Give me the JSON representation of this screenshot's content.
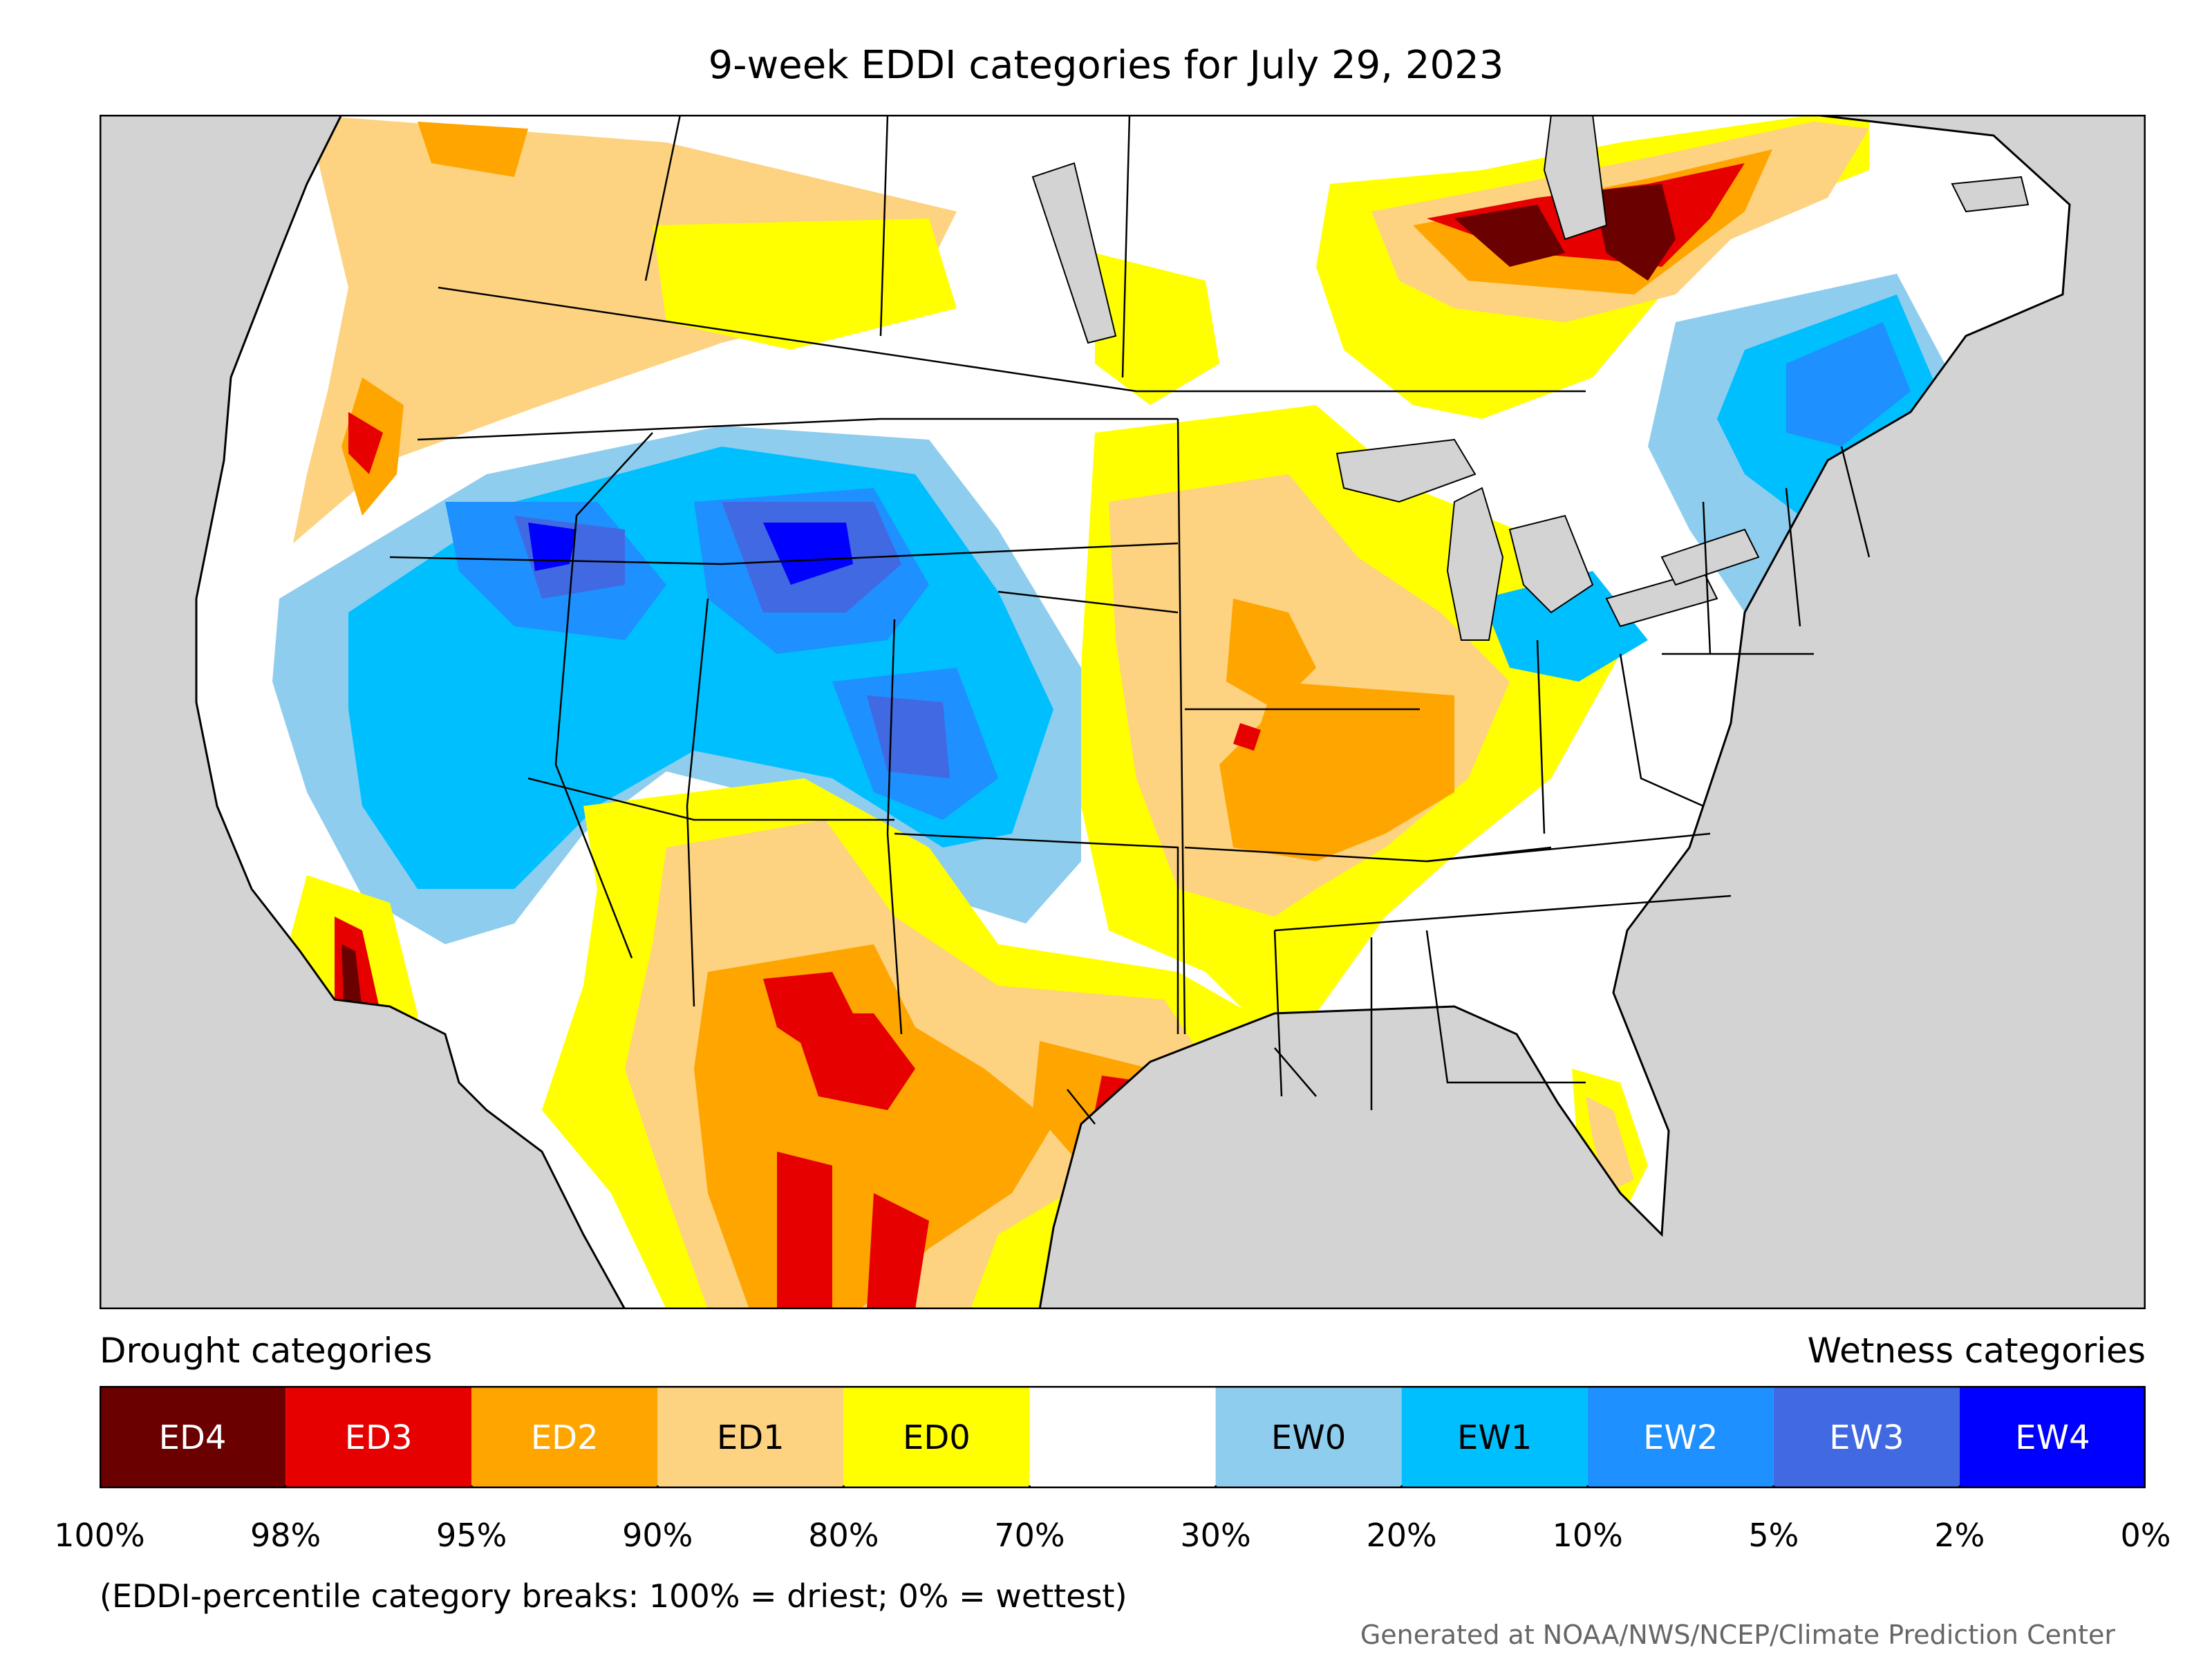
{
  "title": "9-week EDDI categories for July 29, 2023",
  "legend": {
    "drought_label": "Drought categories",
    "wetness_label": "Wetness categories",
    "categories": [
      {
        "label": "ED4",
        "color": "#6b0000",
        "text_color": "#ffffff"
      },
      {
        "label": "ED3",
        "color": "#e60000",
        "text_color": "#ffffff"
      },
      {
        "label": "ED2",
        "color": "#ffa500",
        "text_color": "#ffffff"
      },
      {
        "label": "ED1",
        "color": "#fdd281",
        "text_color": "#000000"
      },
      {
        "label": "ED0",
        "color": "#ffff00",
        "text_color": "#000000"
      },
      {
        "label": "",
        "color": "#ffffff",
        "text_color": "#000000"
      },
      {
        "label": "EW0",
        "color": "#8ecdee",
        "text_color": "#000000"
      },
      {
        "label": "EW1",
        "color": "#00bfff",
        "text_color": "#000000"
      },
      {
        "label": "EW2",
        "color": "#1e90ff",
        "text_color": "#ffffff"
      },
      {
        "label": "EW3",
        "color": "#4169e1",
        "text_color": "#ffffff"
      },
      {
        "label": "EW4",
        "color": "#0000ff",
        "text_color": "#ffffff"
      }
    ],
    "breaks": [
      "100%",
      "98%",
      "95%",
      "90%",
      "80%",
      "70%",
      "30%",
      "20%",
      "10%",
      "5%",
      "2%",
      "0%"
    ]
  },
  "note": "(EDDI-percentile category breaks: 100% = driest; 0% = wettest)",
  "credit": "Generated at NOAA/NWS/NCEP/Climate Prediction Center",
  "map": {
    "background_color": "#d3d3d3",
    "land_color": "#ffffff",
    "line_color": "#000000"
  }
}
